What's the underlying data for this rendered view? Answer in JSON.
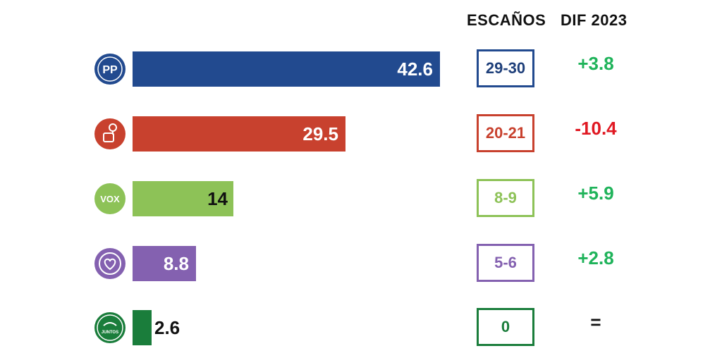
{
  "headers": {
    "seats": "ESCAÑOS",
    "diff": "DIF 2023"
  },
  "chart_data": {
    "type": "bar",
    "orientation": "horizontal",
    "categories": [
      "PP",
      "PSOE",
      "VOX",
      "Unidas por Extremadura",
      "Juntos por Extremadura"
    ],
    "values": [
      42.6,
      29.5,
      14,
      8.8,
      2.6
    ],
    "value_labels": [
      "42.6",
      "29.5",
      "14",
      "8.8",
      "2.6"
    ],
    "seats": [
      "29-30",
      "20-21",
      "8-9",
      "5-6",
      "0"
    ],
    "diff_2023": [
      "+3.8",
      "-10.4",
      "+5.9",
      "+2.8",
      "="
    ],
    "xlim": [
      0,
      42.6
    ]
  },
  "colors": {
    "bars": [
      "#224a8f",
      "#c8412e",
      "#8dc257",
      "#8461b0",
      "#1a7d3b"
    ],
    "seat_text": [
      "#1e3f7a",
      "#c8412e",
      "#8dc257",
      "#8461b0",
      "#1a7d3b"
    ],
    "diff_text": [
      "#1fb35a",
      "#e01822",
      "#1fb35a",
      "#1fb35a",
      "#111111"
    ],
    "value_label_colors": [
      "#ffffff",
      "#ffffff",
      "#111111",
      "#ffffff",
      "#111111"
    ]
  },
  "logos": [
    {
      "icon": "pp-logo-icon",
      "text": "PP"
    },
    {
      "icon": "psoe-rose-fist-icon"
    },
    {
      "icon": "vox-logo-icon",
      "text": "VOX"
    },
    {
      "icon": "heart-logo-icon"
    },
    {
      "icon": "juntos-extremadura-logo-icon",
      "text": "JUNTOS"
    }
  ]
}
